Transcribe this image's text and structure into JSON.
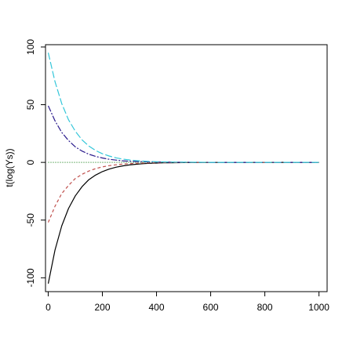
{
  "chart_data": {
    "type": "line",
    "title": "",
    "xlabel": "",
    "ylabel": "t(log(Ys))",
    "xlim": [
      -10,
      1030
    ],
    "ylim": [
      -112,
      102
    ],
    "xticks": [
      0,
      200,
      400,
      600,
      800,
      1000
    ],
    "yticks": [
      -100,
      -50,
      0,
      50,
      100
    ],
    "grid": false,
    "legend": "none",
    "series": [
      {
        "color": "#000000",
        "dash": "",
        "values": [
          [
            0,
            -105
          ],
          [
            25,
            -76
          ],
          [
            50,
            -55
          ],
          [
            75,
            -40
          ],
          [
            100,
            -29
          ],
          [
            125,
            -21
          ],
          [
            150,
            -15
          ],
          [
            175,
            -11
          ],
          [
            200,
            -8
          ],
          [
            225,
            -5.8
          ],
          [
            250,
            -4.2
          ],
          [
            275,
            -3
          ],
          [
            300,
            -2.2
          ],
          [
            325,
            -1.6
          ],
          [
            350,
            -1.1
          ],
          [
            375,
            -0.8
          ],
          [
            400,
            -0.6
          ],
          [
            425,
            -0.4
          ],
          [
            450,
            -0.3
          ],
          [
            500,
            -0.15
          ],
          [
            600,
            -0.04
          ],
          [
            700,
            -0.01
          ],
          [
            800,
            0
          ],
          [
            900,
            0
          ],
          [
            1000,
            0
          ]
        ]
      },
      {
        "color": "#c0504d",
        "dash": "4,3",
        "values": [
          [
            0,
            -52
          ],
          [
            25,
            -38
          ],
          [
            50,
            -27
          ],
          [
            75,
            -20
          ],
          [
            100,
            -14
          ],
          [
            125,
            -10.3
          ],
          [
            150,
            -7.5
          ],
          [
            175,
            -5.4
          ],
          [
            200,
            -3.9
          ],
          [
            225,
            -2.8
          ],
          [
            250,
            -2.1
          ],
          [
            275,
            -1.5
          ],
          [
            300,
            -1.1
          ],
          [
            325,
            -0.8
          ],
          [
            350,
            -0.6
          ],
          [
            375,
            -0.4
          ],
          [
            400,
            -0.3
          ],
          [
            450,
            -0.15
          ],
          [
            500,
            -0.08
          ],
          [
            600,
            -0.02
          ],
          [
            700,
            0
          ],
          [
            800,
            0
          ],
          [
            900,
            0
          ],
          [
            1000,
            0
          ]
        ]
      },
      {
        "color": "#2e8b2e",
        "dash": "1,2",
        "values": [
          [
            0,
            0
          ],
          [
            1000,
            0
          ]
        ]
      },
      {
        "color": "#2a1a8c",
        "dash": "8,2,2,2",
        "values": [
          [
            0,
            49
          ],
          [
            25,
            36
          ],
          [
            50,
            26
          ],
          [
            75,
            19
          ],
          [
            100,
            13.5
          ],
          [
            125,
            9.8
          ],
          [
            150,
            7.1
          ],
          [
            175,
            5.2
          ],
          [
            200,
            3.8
          ],
          [
            225,
            2.7
          ],
          [
            250,
            2
          ],
          [
            275,
            1.4
          ],
          [
            300,
            1
          ],
          [
            325,
            0.75
          ],
          [
            350,
            0.55
          ],
          [
            375,
            0.4
          ],
          [
            400,
            0.29
          ],
          [
            450,
            0.15
          ],
          [
            500,
            0.08
          ],
          [
            600,
            0.02
          ],
          [
            700,
            0
          ],
          [
            800,
            0
          ],
          [
            900,
            0
          ],
          [
            1000,
            0
          ]
        ]
      },
      {
        "color": "#33c6d9",
        "dash": "9,3",
        "values": [
          [
            0,
            95
          ],
          [
            25,
            70
          ],
          [
            50,
            51
          ],
          [
            75,
            37
          ],
          [
            100,
            27
          ],
          [
            125,
            19.5
          ],
          [
            150,
            14.2
          ],
          [
            175,
            10.3
          ],
          [
            200,
            7.5
          ],
          [
            225,
            5.5
          ],
          [
            250,
            4
          ],
          [
            275,
            2.9
          ],
          [
            300,
            2.1
          ],
          [
            325,
            1.5
          ],
          [
            350,
            1.1
          ],
          [
            375,
            0.8
          ],
          [
            400,
            0.6
          ],
          [
            450,
            0.3
          ],
          [
            500,
            0.16
          ],
          [
            600,
            0.04
          ],
          [
            700,
            0.01
          ],
          [
            800,
            0
          ],
          [
            900,
            0
          ],
          [
            1000,
            0
          ]
        ]
      }
    ]
  }
}
